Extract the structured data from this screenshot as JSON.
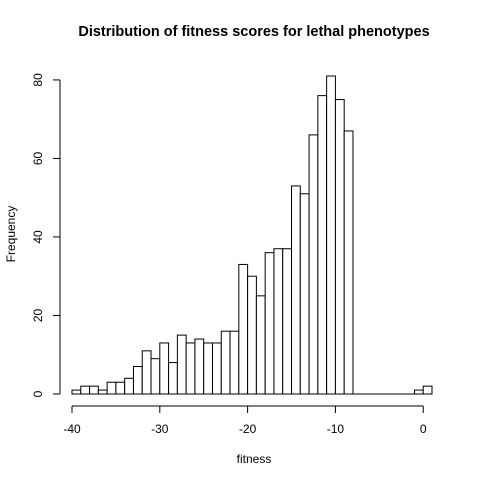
{
  "chart_data": {
    "type": "histogram",
    "title": "Distribution of fitness scores for lethal phenotypes",
    "xlabel": "fitness",
    "ylabel": "Frequency",
    "xlim": [
      -40,
      1
    ],
    "ylim": [
      0,
      81
    ],
    "x_ticks": [
      -40,
      -30,
      -20,
      -10,
      0
    ],
    "y_ticks": [
      0,
      20,
      40,
      60,
      80
    ],
    "bin_width": 1,
    "bins_start": [
      -40,
      -39,
      -38,
      -37,
      -36,
      -35,
      -34,
      -33,
      -32,
      -31,
      -30,
      -29,
      -28,
      -27,
      -26,
      -25,
      -24,
      -23,
      -22,
      -21,
      -20,
      -19,
      -18,
      -17,
      -16,
      -15,
      -14,
      -13,
      -12,
      -11,
      -10,
      -9,
      -8,
      -7,
      -6,
      -5,
      -4,
      -3,
      -2,
      -1,
      0
    ],
    "counts": [
      1,
      2,
      2,
      1,
      3,
      3,
      4,
      7,
      11,
      9,
      13,
      8,
      15,
      13,
      14,
      13,
      13,
      16,
      16,
      33,
      30,
      25,
      36,
      37,
      37,
      53,
      51,
      66,
      76,
      81,
      75,
      67,
      0,
      0,
      0,
      0,
      0,
      0,
      0,
      1,
      2
    ],
    "grid": false,
    "colors": {
      "bar_fill": "#ffffff",
      "bar_stroke": "#000000"
    }
  }
}
